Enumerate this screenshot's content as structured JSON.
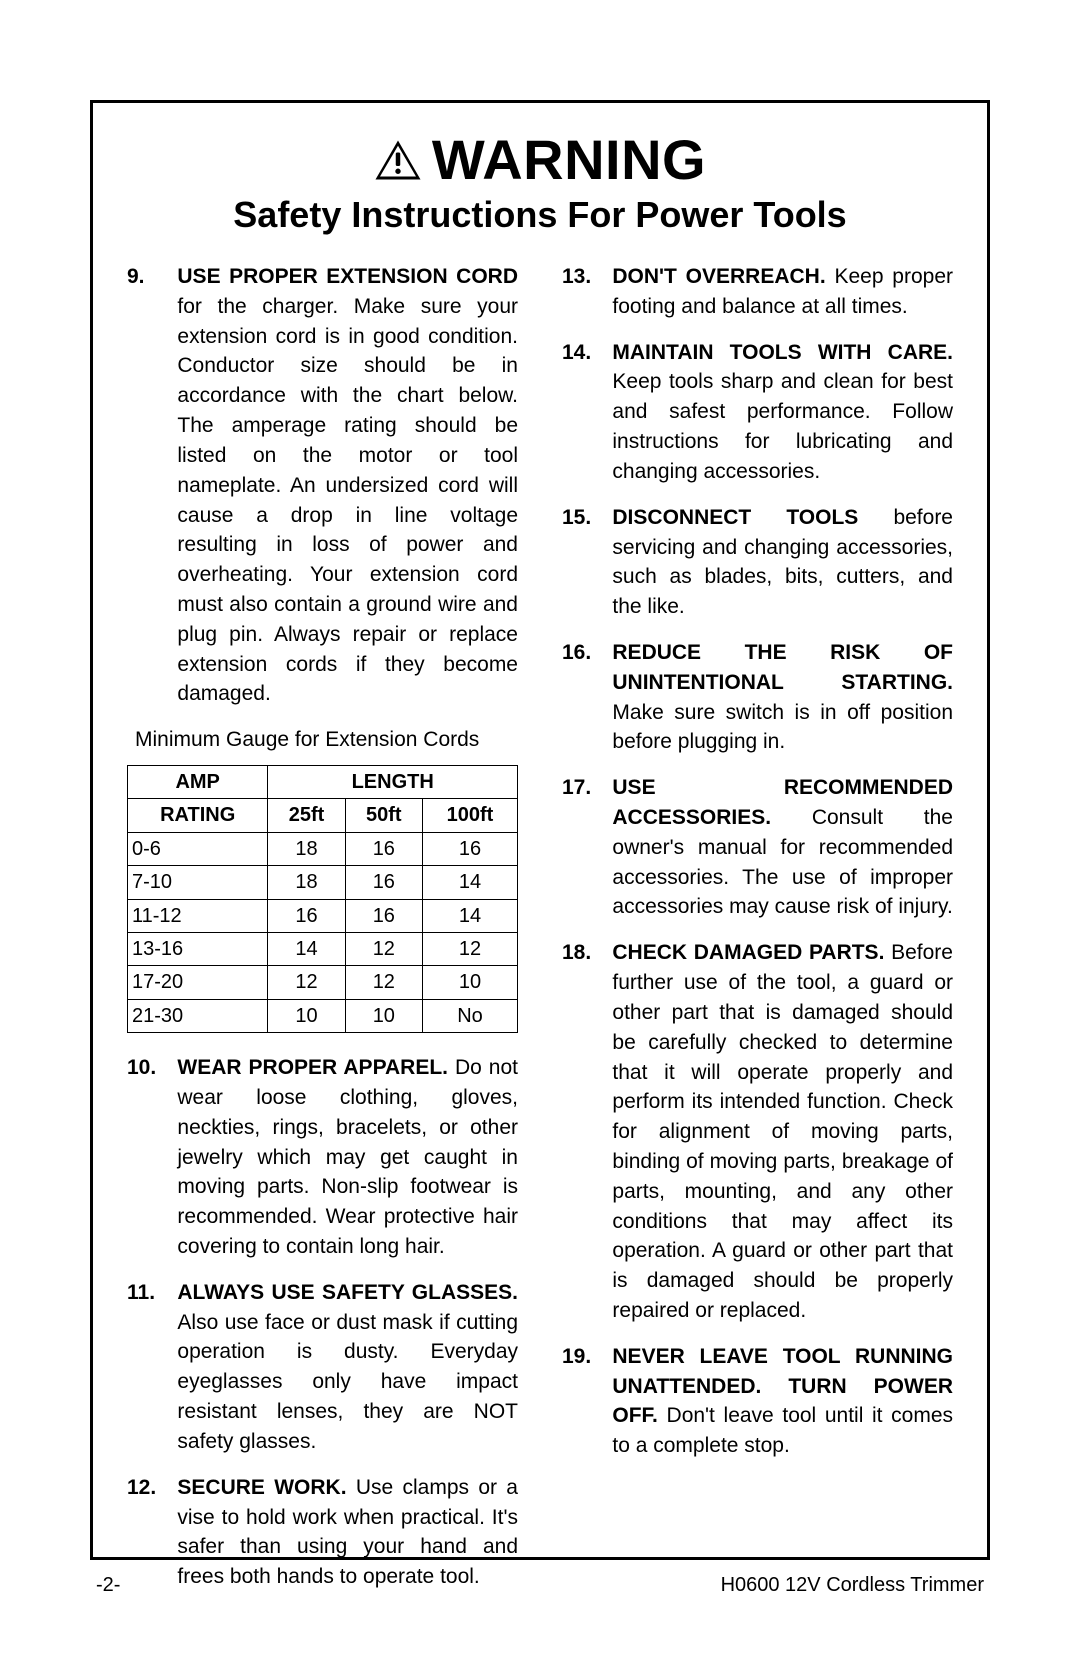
{
  "header": {
    "warning_word": "WARNING",
    "subtitle": "Safety Instructions For Power Tools"
  },
  "left_items": [
    {
      "num": "9.",
      "lead": "USE PROPER EXTENSION CORD",
      "body": " for the charger. Make sure your extension cord is in good condition. Conductor size should be in accordance with the chart below. The amperage rating should be listed on the motor or tool nameplate. An undersized cord will cause a drop in line voltage resulting in loss of power and overheating. Your extension cord must also contain a ground wire and plug pin. Always repair or replace extension cords if they become damaged."
    }
  ],
  "table_caption": "Minimum Gauge for Extension Cords",
  "table": {
    "row_header_top": "AMP",
    "row_header_bottom": "RATING",
    "col_group": "LENGTH",
    "length_headers": [
      "25ft",
      "50ft",
      "100ft"
    ],
    "rows": [
      [
        "0-6",
        "18",
        "16",
        "16"
      ],
      [
        "7-10",
        "18",
        "16",
        "14"
      ],
      [
        "11-12",
        "16",
        "16",
        "14"
      ],
      [
        "13-16",
        "14",
        "12",
        "12"
      ],
      [
        "17-20",
        "12",
        "12",
        "10"
      ],
      [
        "21-30",
        "10",
        "10",
        "No"
      ]
    ]
  },
  "left_items_after": [
    {
      "num": "10.",
      "lead": "WEAR PROPER APPAREL.",
      "body": " Do not wear loose clothing, gloves, neckties, rings, bracelets, or other jewelry which may get caught in moving parts. Non-slip footwear is recommended. Wear protective hair covering to contain long hair."
    },
    {
      "num": "11.",
      "lead": "ALWAYS USE SAFETY GLASSES.",
      "body": " Also use face or dust mask if cutting operation is dusty. Everyday eyeglasses only have impact resistant lenses, they are NOT safety glasses."
    },
    {
      "num": "12.",
      "lead": "SECURE WORK.",
      "body": " Use clamps or a vise to hold work when practical. It's safer than using your hand and frees both hands to operate tool."
    }
  ],
  "right_items": [
    {
      "num": "13.",
      "lead": "DON'T OVERREACH.",
      "body": " Keep proper footing and balance at all times."
    },
    {
      "num": "14.",
      "lead": "MAINTAIN TOOLS WITH CARE.",
      "body": " Keep tools sharp and clean for best and safest performance. Follow instructions for lubricating and changing accessories."
    },
    {
      "num": "15.",
      "lead": "DISCONNECT TOOLS",
      "body": " before servicing and changing accessories, such as blades, bits, cutters, and the like."
    },
    {
      "num": "16.",
      "lead": "REDUCE THE RISK OF UNINTENTIONAL STARTING.",
      "body": " Make sure switch is in off position before plugging in."
    },
    {
      "num": "17.",
      "lead": "USE RECOMMENDED ACCESSORIES.",
      "body": " Consult the owner's manual for recommended accessories. The use of improper accessories may cause risk of injury."
    },
    {
      "num": "18.",
      "lead": "CHECK DAMAGED PARTS.",
      "body": " Before further use of the tool, a guard or other part that is damaged should be carefully checked to determine that it will operate properly and perform its intended function. Check for alignment of moving parts, binding of moving parts, breakage of parts, mounting, and any other conditions that may affect its operation. A guard or other part that is damaged should be properly repaired or replaced."
    },
    {
      "num": "19.",
      "lead": "NEVER LEAVE TOOL RUNNING UNATTENDED. TURN POWER OFF.",
      "body": " Don't leave tool until it comes to a complete stop."
    }
  ],
  "footer": {
    "left": "-2-",
    "right": "H0600 12V Cordless Trimmer"
  },
  "colors": {
    "text": "#000000",
    "border": "#000000",
    "background": "#ffffff"
  }
}
